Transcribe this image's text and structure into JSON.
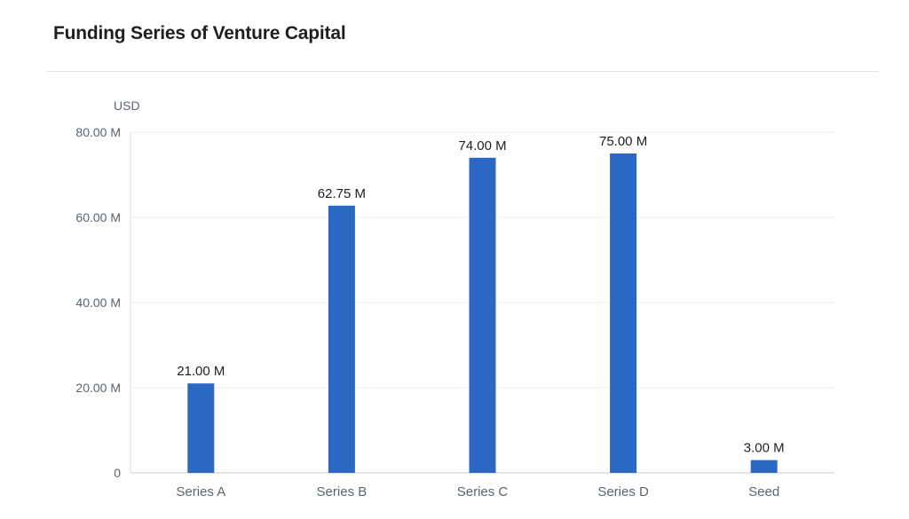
{
  "chart_data": {
    "type": "bar",
    "title": "Funding Series of Venture Capital",
    "ylabel": "USD",
    "xlabel": "",
    "categories": [
      "Series A",
      "Series B",
      "Series C",
      "Series D",
      "Seed"
    ],
    "values": [
      21.0,
      62.75,
      74.0,
      75.0,
      3.0
    ],
    "data_labels": [
      "21.00 M",
      "62.75 M",
      "74.00 M",
      "75.00 M",
      "3.00 M"
    ],
    "ylim": [
      0,
      80
    ],
    "yticks": [
      0,
      20,
      40,
      60,
      80
    ],
    "ytick_labels": [
      "0",
      "20.00 M",
      "40.00 M",
      "60.00 M",
      "80.00 M"
    ],
    "grid": true,
    "bar_color": "#2a68c3",
    "grid_color": "#ececec"
  }
}
